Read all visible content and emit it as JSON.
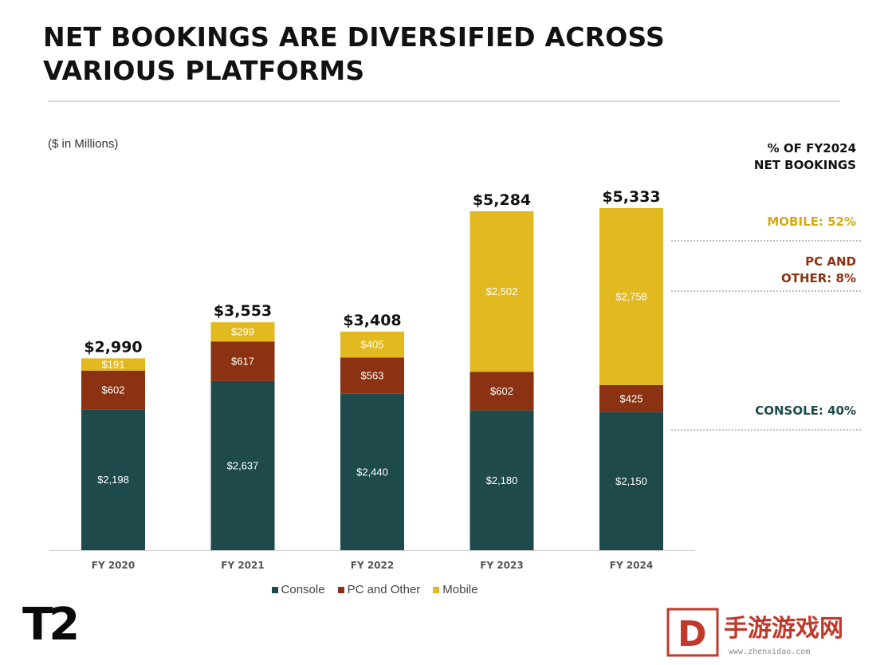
{
  "page": {
    "title_line1": "NET BOOKINGS ARE DIVERSIFIED ACROSS",
    "title_line2": "VARIOUS PLATFORMS",
    "units_note": "($ in Millions)",
    "pct_header_line1": "% OF FY2024",
    "pct_header_line2": "NET BOOKINGS",
    "pct_mobile": "MOBILE: 52%",
    "pct_pc_line1": "PC AND",
    "pct_pc_line2": "OTHER: 8%",
    "pct_console": "CONSOLE: 40%",
    "logo_text": "T2",
    "watermark_text": "手游游戏网",
    "watermark_url": "www.zhenxidao.com"
  },
  "colors": {
    "console": "#1e4a4c",
    "pc_other": "#8a3212",
    "mobile": "#e3b922",
    "mobile_label": "#d4a91a",
    "pc_label": "#8a3212",
    "console_label": "#1e4a4c"
  },
  "chart_data": {
    "type": "bar",
    "stacked": true,
    "categories": [
      "FY 2020",
      "FY 2021",
      "FY 2022",
      "FY 2023",
      "FY 2024"
    ],
    "series": [
      {
        "name": "Console",
        "values": [
          2198,
          2637,
          2440,
          2180,
          2150
        ],
        "labels": [
          "$2,198",
          "$2,637",
          "$2,440",
          "$2,180",
          "$2,150"
        ]
      },
      {
        "name": "PC and Other",
        "values": [
          602,
          617,
          563,
          602,
          425
        ],
        "labels": [
          "$602",
          "$617",
          "$563",
          "$602",
          "$425"
        ]
      },
      {
        "name": "Mobile",
        "values": [
          191,
          299,
          405,
          2502,
          2758
        ],
        "labels": [
          "$191",
          "$299",
          "$405",
          "$2,502",
          "$2,758"
        ]
      }
    ],
    "totals": [
      2990,
      3553,
      3408,
      5284,
      5333
    ],
    "total_labels": [
      "$2,990",
      "$3,553",
      "$3,408",
      "$5,284",
      "$5,333"
    ],
    "ylim": [
      0,
      5333
    ],
    "grid": false,
    "legend_position": "bottom"
  }
}
